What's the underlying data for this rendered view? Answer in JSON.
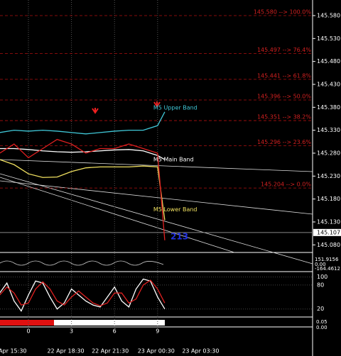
{
  "chart_data": {
    "type": "line",
    "x": [
      -2,
      -1,
      0,
      1,
      2,
      3,
      4,
      5,
      6,
      7,
      8,
      9,
      9.5
    ],
    "xlim": [
      -1.98,
      19.8
    ],
    "xticks": [
      0,
      3,
      6,
      9
    ],
    "date_ticks": [
      {
        "value": -1.1,
        "label": "Apr 15:30"
      },
      {
        "value": 2.6,
        "label": "22 Apr 18:30"
      },
      {
        "value": 5.7,
        "label": "22 Apr 21:30"
      },
      {
        "value": 8.9,
        "label": "23 Apr 00:30"
      },
      {
        "value": 12.0,
        "label": "23 Apr 03:30"
      }
    ],
    "ylim": [
      145.065,
      145.614
    ],
    "yticks": [
      {
        "value": 145.58,
        "label": "145.580"
      },
      {
        "value": 145.53,
        "label": "145.530"
      },
      {
        "value": 145.48,
        "label": "145.480"
      },
      {
        "value": 145.43,
        "label": "145.430"
      },
      {
        "value": 145.38,
        "label": "145.380"
      },
      {
        "value": 145.33,
        "label": "145.330"
      },
      {
        "value": 145.28,
        "label": "145.280"
      },
      {
        "value": 145.23,
        "label": "145.230"
      },
      {
        "value": 145.18,
        "label": "145.180"
      },
      {
        "value": 145.13,
        "label": "145.130"
      },
      {
        "value": 145.08,
        "label": "145.080"
      }
    ],
    "current_price": 145.107,
    "fib_levels": [
      {
        "value": 145.58,
        "label": "145.580 --> 100.0%"
      },
      {
        "value": 145.497,
        "label": "145.497 --> 76.4%"
      },
      {
        "value": 145.441,
        "label": "145.441 --> 61.8%"
      },
      {
        "value": 145.396,
        "label": "145.396 --> 50.0%"
      },
      {
        "value": 145.351,
        "label": "145.351 --> 38.2%"
      },
      {
        "value": 145.296,
        "label": "145.296 --> 23.6%"
      },
      {
        "value": 145.204,
        "label": "145.204 --> 0.0%"
      }
    ],
    "series": [
      {
        "name": "M5 Upper Band",
        "color": "#40c8d8",
        "values": [
          145.325,
          145.33,
          145.328,
          145.33,
          145.328,
          145.325,
          145.322,
          145.325,
          145.328,
          145.33,
          145.33,
          145.34,
          145.37
        ]
      },
      {
        "name": "M5 Main Band",
        "color": "#ffffff",
        "values": [
          145.29,
          145.29,
          145.288,
          145.285,
          145.283,
          145.282,
          145.283,
          145.285,
          145.287,
          145.288,
          145.285,
          145.275,
          145.266
        ]
      },
      {
        "name": "M5 Lower Band",
        "color": "#f0e060",
        "values": [
          145.266,
          145.255,
          145.235,
          145.227,
          145.228,
          145.24,
          145.248,
          145.25,
          145.25,
          145.25,
          145.252,
          145.25,
          145.134
        ]
      }
    ],
    "close": [
      145.28,
      145.3,
      145.27,
      145.29,
      145.31,
      145.3,
      145.28,
      145.29,
      145.29,
      145.3,
      145.29,
      145.28,
      145.09
    ],
    "close_color": "#e02020",
    "annotation": "213",
    "cci_labels": [
      "151.9156",
      "0.00",
      "-164.4612"
    ],
    "stochastic": {
      "x": [
        -2,
        -1.5,
        -1,
        -0.5,
        0,
        0.5,
        1,
        1.5,
        2,
        2.5,
        3,
        3.5,
        4,
        4.5,
        5,
        5.5,
        6,
        6.5,
        7,
        7.5,
        8,
        8.5,
        9,
        9.5
      ],
      "ylim": [
        0,
        110
      ],
      "yticks": [
        100,
        80,
        20
      ],
      "main": [
        60,
        85,
        40,
        15,
        55,
        90,
        85,
        50,
        20,
        35,
        70,
        55,
        40,
        30,
        25,
        50,
        75,
        40,
        25,
        70,
        95,
        90,
        50,
        20
      ],
      "signal": [
        55,
        75,
        60,
        30,
        35,
        70,
        88,
        70,
        40,
        30,
        50,
        65,
        50,
        35,
        28,
        35,
        60,
        60,
        35,
        45,
        80,
        92,
        70,
        35
      ]
    },
    "bottom_labels": [
      "0.05",
      "0.00"
    ]
  }
}
